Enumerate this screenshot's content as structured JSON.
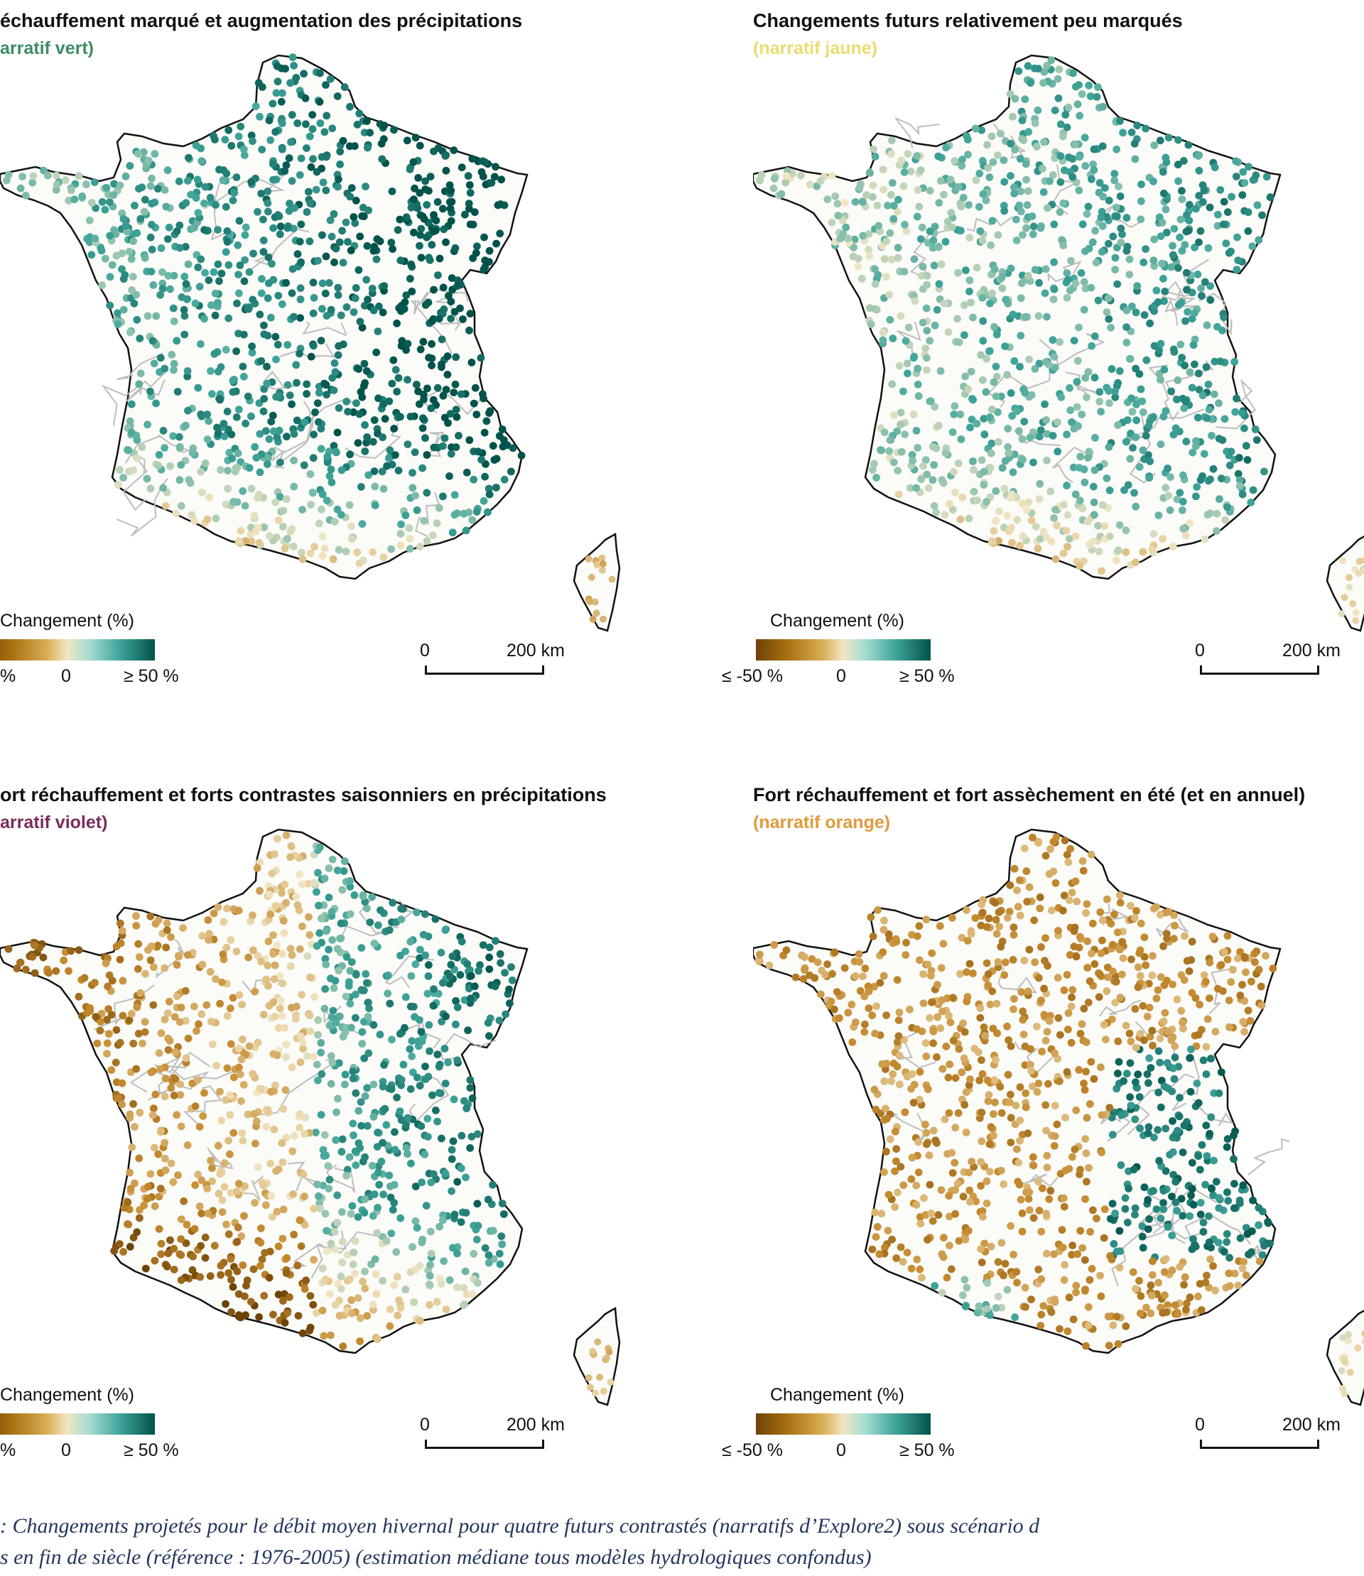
{
  "panels": [
    {
      "title": "échauffement marqué et augmentation des précipitations",
      "subtitle": "arratif vert)",
      "subtitle_color": "#3c8c64",
      "legend_title": "Changement (%)",
      "legend_labels": [
        "%",
        "0",
        "≥ 50 %"
      ],
      "scale_labels": [
        "0",
        "200 km"
      ],
      "pattern": "wetting"
    },
    {
      "title": "Changements futurs relativement peu marqués",
      "subtitle": "(narratif jaune)",
      "subtitle_color": "#eadc70",
      "legend_title": "Changement (%)",
      "legend_labels": [
        "≤ -50 %",
        "0",
        "≥ 50 %"
      ],
      "scale_labels": [
        "0",
        "200 km"
      ],
      "pattern": "moderate"
    },
    {
      "title": "ort réchauffement et forts contrastes saisonniers en précipitations",
      "subtitle": "arratif violet)",
      "subtitle_color": "#7a2d5c",
      "legend_title": "Changement (%)",
      "legend_labels": [
        "%",
        "0",
        "≥ 50 %"
      ],
      "scale_labels": [
        "0",
        "200 km"
      ],
      "pattern": "contrast"
    },
    {
      "title": "Fort réchauffement et fort assèchement en été (et en annuel)",
      "subtitle": "(narratif orange)",
      "subtitle_color": "#e09a3c",
      "legend_title": "Changement (%)",
      "legend_labels": [
        "≤ -50 %",
        "0",
        "≥ 50 %"
      ],
      "scale_labels": [
        "0",
        "200 km"
      ],
      "pattern": "drying"
    }
  ],
  "caption": {
    "line1": ": Changements projetés pour le débit moyen hivernal pour quatre futurs contrastés (narratifs d’Explore2) sous scénario d",
    "line2": "s en fin de siècle (référence : 1976-2005) (estimation médiane tous modèles hydrologiques confondus)"
  },
  "colors": {
    "strong_decrease": "#6e4308",
    "decrease": "#c48a2e",
    "neutral": "#f2e6c4",
    "increase": "#3fa49a",
    "strong_increase": "#01524a"
  }
}
